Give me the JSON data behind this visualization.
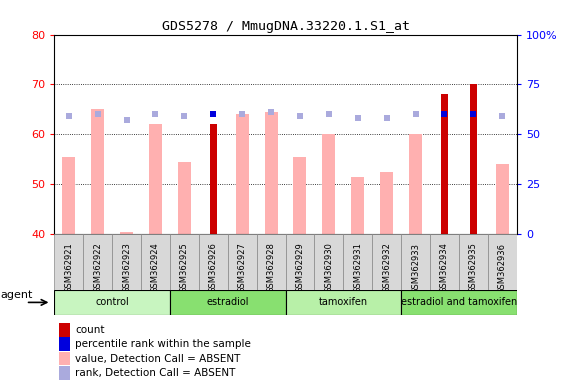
{
  "title": "GDS5278 / MmugDNA.33220.1.S1_at",
  "samples": [
    "GSM362921",
    "GSM362922",
    "GSM362923",
    "GSM362924",
    "GSM362925",
    "GSM362926",
    "GSM362927",
    "GSM362928",
    "GSM362929",
    "GSM362930",
    "GSM362931",
    "GSM362932",
    "GSM362933",
    "GSM362934",
    "GSM362935",
    "GSM362936"
  ],
  "count_values": [
    null,
    null,
    null,
    null,
    null,
    62.0,
    null,
    null,
    null,
    null,
    null,
    null,
    null,
    68.0,
    70.0,
    null
  ],
  "value_absent": [
    55.5,
    65.0,
    40.5,
    62.0,
    54.5,
    null,
    64.0,
    64.5,
    55.5,
    60.0,
    51.5,
    52.5,
    60.0,
    null,
    null,
    54.0
  ],
  "rank_absent_pct": [
    59,
    60,
    57,
    60,
    59,
    null,
    60,
    61,
    59,
    60,
    58,
    58,
    60,
    null,
    null,
    59
  ],
  "percentile_rank_pct": [
    null,
    null,
    null,
    null,
    null,
    60,
    null,
    null,
    null,
    null,
    null,
    null,
    null,
    60,
    60,
    null
  ],
  "groups": [
    {
      "label": "control",
      "start": 0,
      "end": 3,
      "color": "#c8f5c0"
    },
    {
      "label": "estradiol",
      "start": 4,
      "end": 7,
      "color": "#88e070"
    },
    {
      "label": "tamoxifen",
      "start": 8,
      "end": 11,
      "color": "#b8f0a8"
    },
    {
      "label": "estradiol and tamoxifen",
      "start": 12,
      "end": 15,
      "color": "#88e070"
    }
  ],
  "ylim_left": [
    40,
    80
  ],
  "ylim_right": [
    0,
    100
  ],
  "yticks_left": [
    40,
    50,
    60,
    70,
    80
  ],
  "yticks_right": [
    0,
    25,
    50,
    75,
    100
  ],
  "ytick_labels_right": [
    "0",
    "25",
    "50",
    "75",
    "100%"
  ],
  "color_count": "#cc0000",
  "color_percentile": "#0000dd",
  "color_value_absent": "#ffb0b0",
  "color_rank_absent": "#aaaadd",
  "background_color": "#ffffff"
}
